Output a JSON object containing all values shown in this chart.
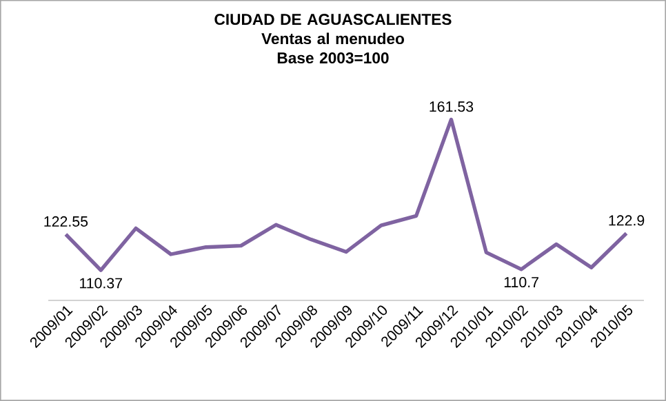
{
  "chart_data": {
    "type": "line",
    "title": "CIUDAD DE AGUASCALIENTES",
    "subtitle": "Ventas al menudeo\nBase 2003=100",
    "categories": [
      "2009/01",
      "2009/02",
      "2009/03",
      "2009/04",
      "2009/05",
      "2009/06",
      "2009/07",
      "2009/08",
      "2009/09",
      "2009/10",
      "2009/11",
      "2009/12",
      "2010/01",
      "2010/02",
      "2010/03",
      "2010/04",
      "2010/05"
    ],
    "series": [
      {
        "color": "#7f63a1",
        "values": [
          122.55,
          110.37,
          124.6,
          115.8,
          118.2,
          118.7,
          125.8,
          120.8,
          116.6,
          125.6,
          128.8,
          161.53,
          116.4,
          110.7,
          119.2,
          111.3,
          122.9
        ],
        "value_labels": [
          "122.55",
          "110.37",
          null,
          null,
          null,
          null,
          null,
          null,
          null,
          null,
          null,
          "161.53",
          null,
          "110.7",
          null,
          null,
          "122.9"
        ]
      }
    ],
    "grid": false,
    "marker": "none",
    "line_style": "solid"
  }
}
